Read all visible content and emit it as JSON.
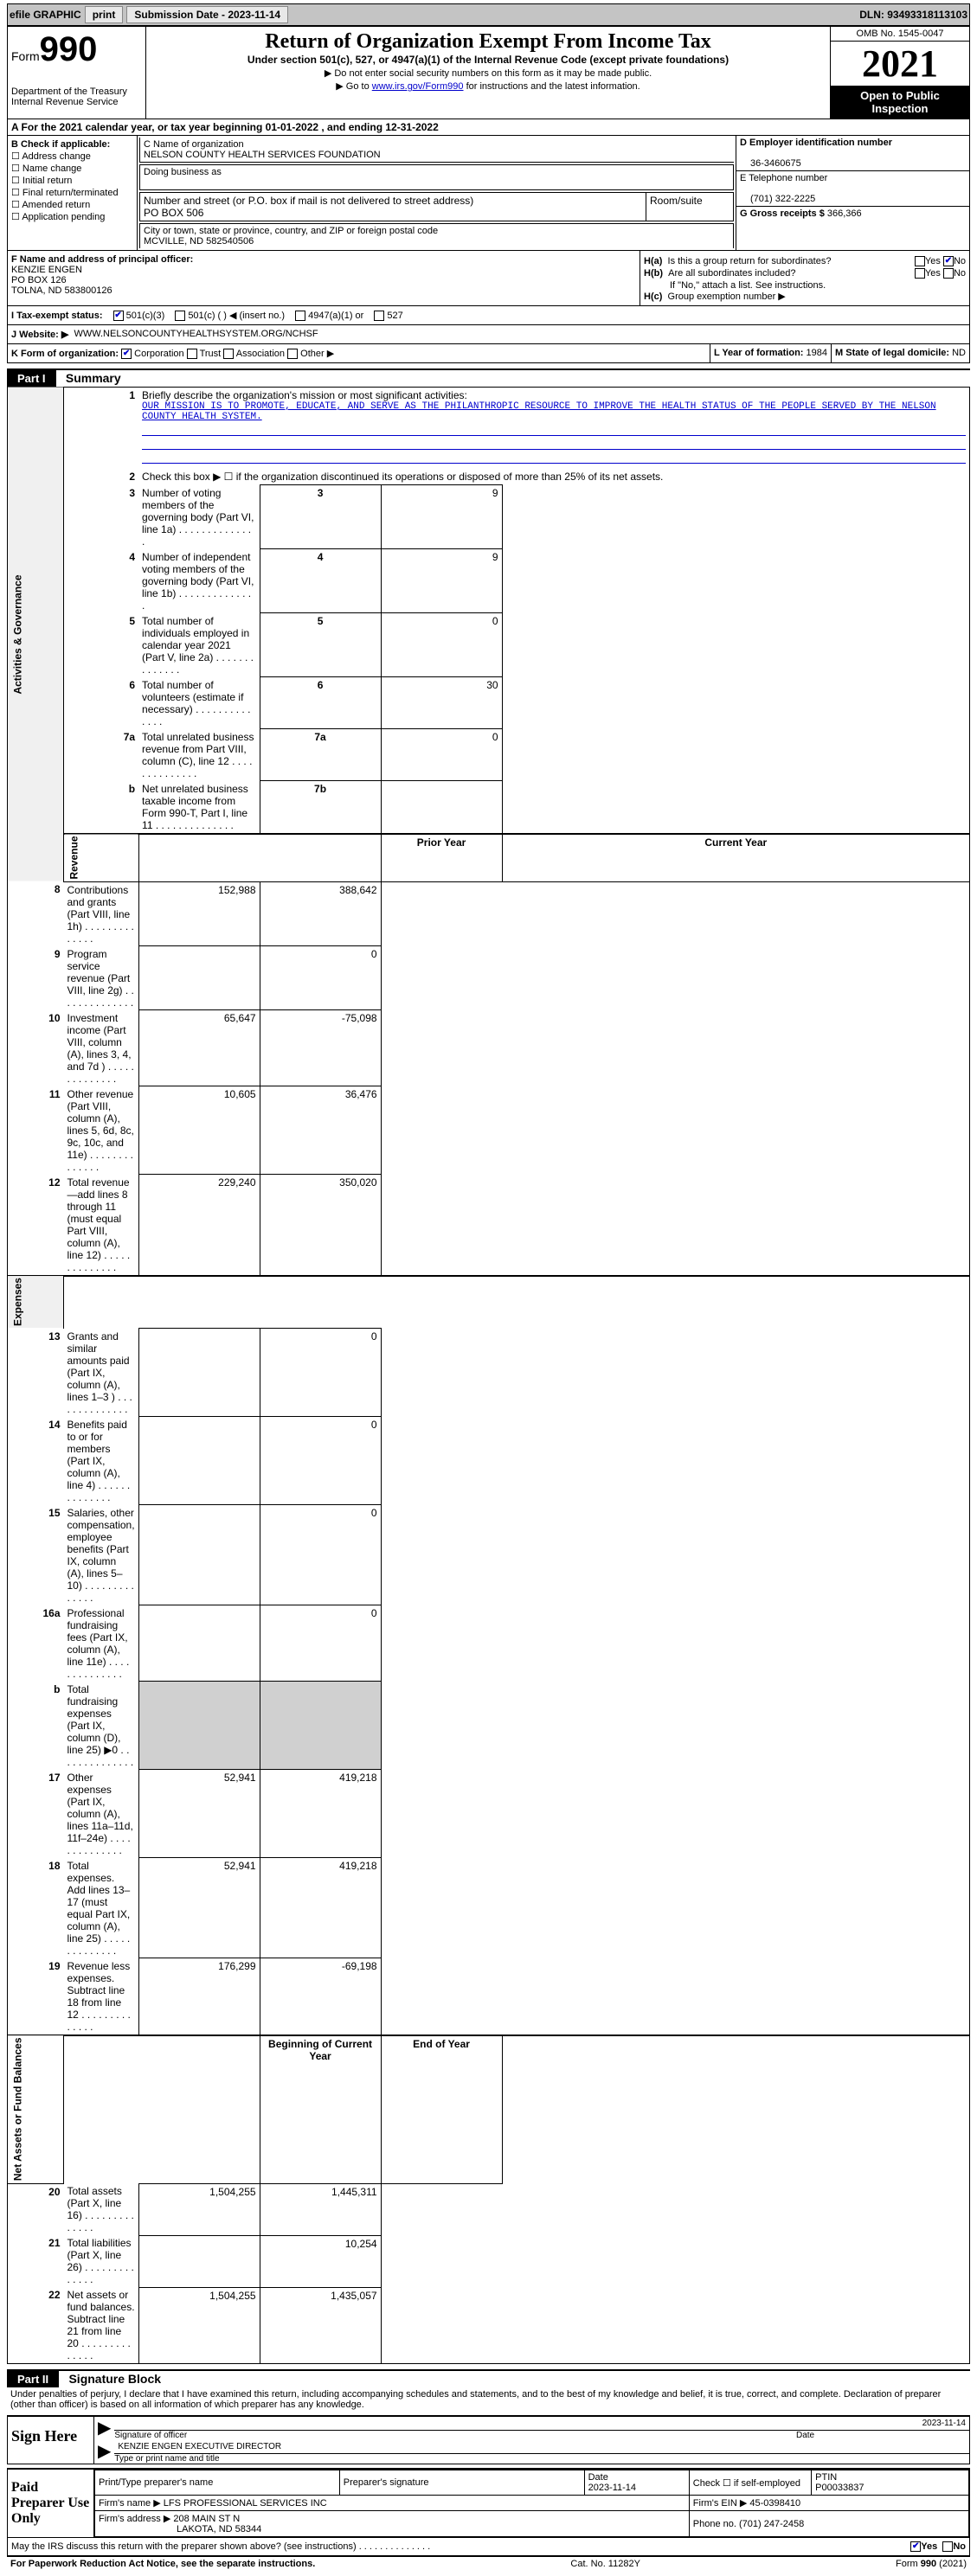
{
  "topbar": {
    "efile": "efile GRAPHIC",
    "print": "print",
    "submission": "Submission Date - 2023-11-14",
    "dln": "DLN: 93493318113103"
  },
  "header": {
    "form": "Form",
    "formnum": "990",
    "dept": "Department of the Treasury",
    "irs": "Internal Revenue Service",
    "title": "Return of Organization Exempt From Income Tax",
    "subtitle": "Under section 501(c), 527, or 4947(a)(1) of the Internal Revenue Code (except private foundations)",
    "line1": "▶ Do not enter social security numbers on this form as it may be made public.",
    "line2_pre": "▶ Go to ",
    "line2_link": "www.irs.gov/Form990",
    "line2_post": " for instructions and the latest information.",
    "omb": "OMB No. 1545-0047",
    "year": "2021",
    "open": "Open to Public Inspection"
  },
  "row_a": "A For the 2021 calendar year, or tax year beginning 01-01-2022   , and ending 12-31-2022",
  "col_b": {
    "label": "B Check if applicable:",
    "opts": [
      "Address change",
      "Name change",
      "Initial return",
      "Final return/terminated",
      "Amended return",
      "Application pending"
    ]
  },
  "col_c": {
    "name_label": "C Name of organization",
    "name": "NELSON COUNTY HEALTH SERVICES FOUNDATION",
    "dba_label": "Doing business as",
    "addr_label": "Number and street (or P.O. box if mail is not delivered to street address)",
    "addr": "PO BOX 506",
    "room_label": "Room/suite",
    "city_label": "City or town, state or province, country, and ZIP or foreign postal code",
    "city": "MCVILLE, ND  582540506"
  },
  "col_d": {
    "ein_label": "D Employer identification number",
    "ein": "36-3460675",
    "tel_label": "E Telephone number",
    "tel": "(701) 322-2225",
    "gross_label": "G Gross receipts $",
    "gross": "366,366"
  },
  "col_f": {
    "label": "F Name and address of principal officer:",
    "name": "KENZIE ENGEN",
    "addr1": "PO BOX 126",
    "addr2": "TOLNA, ND  583800126"
  },
  "col_h": {
    "a_label": "H(a)",
    "a_text": "Is this a group return for subordinates?",
    "b_label": "H(b)",
    "b_text": "Are all subordinates included?",
    "b_note": "If \"No,\" attach a list. See instructions.",
    "c_label": "H(c)",
    "c_text": "Group exemption number ▶",
    "yes": "Yes",
    "no": "No"
  },
  "row_i": {
    "label": "I   Tax-exempt status:",
    "o1": "501(c)(3)",
    "o2": "501(c) (  ) ◀ (insert no.)",
    "o3": "4947(a)(1) or",
    "o4": "527"
  },
  "row_j": {
    "label": "J   Website: ▶",
    "val": "WWW.NELSONCOUNTYHEALTHSYSTEM.ORG/NCHSF"
  },
  "row_k": {
    "k_label": "K Form of organization:",
    "corp": "Corporation",
    "trust": "Trust",
    "assoc": "Association",
    "other": "Other ▶",
    "l_label": "L Year of formation:",
    "l_val": "1984",
    "m_label": "M State of legal domicile:",
    "m_val": "ND"
  },
  "part1": {
    "header": "Part I",
    "title": "Summary",
    "vert1": "Activities & Governance",
    "vert2": "Revenue",
    "vert3": "Expenses",
    "vert4": "Net Assets or Fund Balances",
    "line1_label": "Briefly describe the organization's mission or most significant activities:",
    "mission": "OUR MISSION IS TO PROMOTE, EDUCATE, AND SERVE AS THE PHILANTHROPIC RESOURCE TO IMPROVE THE HEALTH STATUS OF THE PEOPLE SERVED BY THE NELSON COUNTY HEALTH SYSTEM.",
    "line2": "Check this box ▶ ☐ if the organization discontinued its operations or disposed of more than 25% of its net assets.",
    "lines": [
      {
        "n": "3",
        "t": "Number of voting members of the governing body (Part VI, line 1a)",
        "box": "3",
        "v": "9"
      },
      {
        "n": "4",
        "t": "Number of independent voting members of the governing body (Part VI, line 1b)",
        "box": "4",
        "v": "9"
      },
      {
        "n": "5",
        "t": "Total number of individuals employed in calendar year 2021 (Part V, line 2a)",
        "box": "5",
        "v": "0"
      },
      {
        "n": "6",
        "t": "Total number of volunteers (estimate if necessary)",
        "box": "6",
        "v": "30"
      },
      {
        "n": "7a",
        "t": "Total unrelated business revenue from Part VIII, column (C), line 12",
        "box": "7a",
        "v": "0"
      },
      {
        "n": "b",
        "t": "Net unrelated business taxable income from Form 990-T, Part I, line 11",
        "box": "7b",
        "v": ""
      }
    ],
    "prior_header": "Prior Year",
    "current_header": "Current Year",
    "rev_lines": [
      {
        "n": "8",
        "t": "Contributions and grants (Part VIII, line 1h)",
        "p": "152,988",
        "c": "388,642"
      },
      {
        "n": "9",
        "t": "Program service revenue (Part VIII, line 2g)",
        "p": "",
        "c": "0"
      },
      {
        "n": "10",
        "t": "Investment income (Part VIII, column (A), lines 3, 4, and 7d )",
        "p": "65,647",
        "c": "-75,098"
      },
      {
        "n": "11",
        "t": "Other revenue (Part VIII, column (A), lines 5, 6d, 8c, 9c, 10c, and 11e)",
        "p": "10,605",
        "c": "36,476"
      },
      {
        "n": "12",
        "t": "Total revenue—add lines 8 through 11 (must equal Part VIII, column (A), line 12)",
        "p": "229,240",
        "c": "350,020"
      }
    ],
    "exp_lines": [
      {
        "n": "13",
        "t": "Grants and similar amounts paid (Part IX, column (A), lines 1–3 )",
        "p": "",
        "c": "0"
      },
      {
        "n": "14",
        "t": "Benefits paid to or for members (Part IX, column (A), line 4)",
        "p": "",
        "c": "0"
      },
      {
        "n": "15",
        "t": "Salaries, other compensation, employee benefits (Part IX, column (A), lines 5–10)",
        "p": "",
        "c": "0"
      },
      {
        "n": "16a",
        "t": "Professional fundraising fees (Part IX, column (A), line 11e)",
        "p": "",
        "c": "0"
      },
      {
        "n": "b",
        "t": "Total fundraising expenses (Part IX, column (D), line 25) ▶0",
        "p": "shade",
        "c": "shade"
      },
      {
        "n": "17",
        "t": "Other expenses (Part IX, column (A), lines 11a–11d, 11f–24e)",
        "p": "52,941",
        "c": "419,218"
      },
      {
        "n": "18",
        "t": "Total expenses. Add lines 13–17 (must equal Part IX, column (A), line 25)",
        "p": "52,941",
        "c": "419,218"
      },
      {
        "n": "19",
        "t": "Revenue less expenses. Subtract line 18 from line 12",
        "p": "176,299",
        "c": "-69,198"
      }
    ],
    "begin_header": "Beginning of Current Year",
    "end_header": "End of Year",
    "net_lines": [
      {
        "n": "20",
        "t": "Total assets (Part X, line 16)",
        "p": "1,504,255",
        "c": "1,445,311"
      },
      {
        "n": "21",
        "t": "Total liabilities (Part X, line 26)",
        "p": "",
        "c": "10,254"
      },
      {
        "n": "22",
        "t": "Net assets or fund balances. Subtract line 21 from line 20",
        "p": "1,504,255",
        "c": "1,435,057"
      }
    ]
  },
  "part2": {
    "header": "Part II",
    "title": "Signature Block",
    "penalty": "Under penalties of perjury, I declare that I have examined this return, including accompanying schedules and statements, and to the best of my knowledge and belief, it is true, correct, and complete. Declaration of preparer (other than officer) is based on all information of which preparer has any knowledge.",
    "sign_here": "Sign Here",
    "sig_officer": "Signature of officer",
    "sig_date": "2023-11-14",
    "date_label": "Date",
    "name_title": "KENZIE ENGEN  EXECUTIVE DIRECTOR",
    "name_label": "Type or print name and title",
    "paid": "Paid Preparer Use Only",
    "prep_name_label": "Print/Type preparer's name",
    "prep_sig_label": "Preparer's signature",
    "prep_date_label": "Date",
    "prep_date": "2023-11-14",
    "check_self": "Check ☐ if self-employed",
    "ptin_label": "PTIN",
    "ptin": "P00033837",
    "firm_name_label": "Firm's name    ▶",
    "firm_name": "LFS PROFESSIONAL SERVICES INC",
    "firm_ein_label": "Firm's EIN ▶",
    "firm_ein": "45-0398410",
    "firm_addr_label": "Firm's address ▶",
    "firm_addr": "208 MAIN ST N",
    "firm_city": "LAKOTA, ND  58344",
    "phone_label": "Phone no.",
    "phone": "(701) 247-2458",
    "discuss": "May the IRS discuss this return with the preparer shown above? (see instructions)",
    "yes": "Yes",
    "no": "No"
  },
  "footer": {
    "left": "For Paperwork Reduction Act Notice, see the separate instructions.",
    "mid": "Cat. No. 11282Y",
    "right": "Form 990 (2021)"
  }
}
